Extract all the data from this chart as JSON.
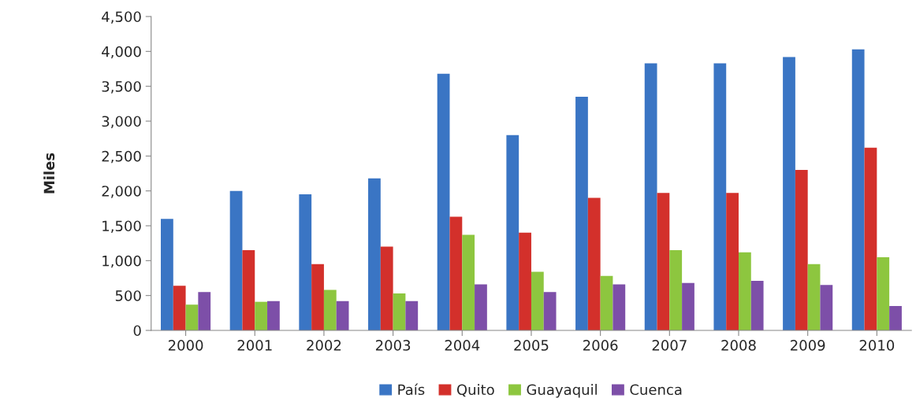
{
  "chart_data": {
    "type": "bar",
    "ylabel": "Miles",
    "categories": [
      "2000",
      "2001",
      "2002",
      "2003",
      "2004",
      "2005",
      "2006",
      "2007",
      "2008",
      "2009",
      "2010"
    ],
    "series": [
      {
        "name": "País",
        "color": "#3a75c4",
        "values": [
          1600,
          2000,
          1950,
          2180,
          3680,
          2800,
          3350,
          3830,
          3830,
          3920,
          4030
        ]
      },
      {
        "name": "Quito",
        "color": "#d3302b",
        "values": [
          640,
          1150,
          950,
          1200,
          1630,
          1400,
          1900,
          1970,
          1970,
          2300,
          2620
        ]
      },
      {
        "name": "Guayaquil",
        "color": "#8dc63f",
        "values": [
          370,
          410,
          580,
          530,
          1370,
          840,
          780,
          1150,
          1120,
          950,
          1050
        ]
      },
      {
        "name": "Cuenca",
        "color": "#7d4fa8",
        "values": [
          550,
          420,
          420,
          420,
          660,
          550,
          660,
          680,
          710,
          650,
          350
        ]
      }
    ],
    "ylim": [
      0,
      4500
    ],
    "yticks": [
      0,
      {
        "value": 500,
        "label": "500"
      },
      {
        "value": 1000,
        "label": "1,000"
      },
      {
        "value": 1500,
        "label": "1,500"
      },
      {
        "value": 2000,
        "label": "2,000"
      },
      {
        "value": 2500,
        "label": "2,500"
      },
      {
        "value": 3000,
        "label": "3,000"
      },
      {
        "value": 3500,
        "label": "3,500"
      },
      {
        "value": 4000,
        "label": "4,000"
      },
      {
        "value": 4500,
        "label": "4,500"
      }
    ],
    "grid": false,
    "legend": "bottom"
  }
}
